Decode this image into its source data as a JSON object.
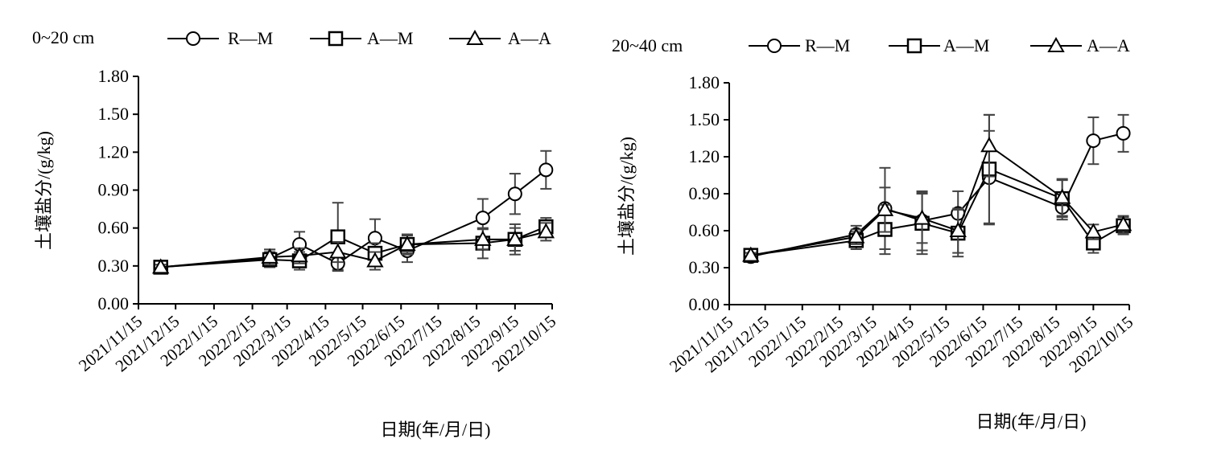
{
  "chart_data": [
    {
      "type": "line",
      "panel_label": "0~20 cm",
      "xlabel": "日期(年/月/日)",
      "ylabel": "土壤盐分/(g/kg)",
      "x_ticks": [
        "2021/11/15",
        "2021/12/15",
        "2022/1/15",
        "2022/2/15",
        "2022/3/15",
        "2022/4/15",
        "2022/5/15",
        "2022/6/15",
        "2022/7/15",
        "2022/8/15",
        "2022/9/15",
        "2022/10/15"
      ],
      "y_ticks": [
        "0.00",
        "0.30",
        "0.60",
        "0.90",
        "1.20",
        "1.50",
        "1.80"
      ],
      "ylim": [
        0,
        1.8
      ],
      "legend_position": "top",
      "series": [
        {
          "name": "R—M",
          "marker": "circle",
          "x": [
            "2021/12/3",
            "2022/3/1",
            "2022/3/25",
            "2022/4/25",
            "2022/5/25",
            "2022/6/20",
            "2022/8/20",
            "2022/9/15",
            "2022/10/10"
          ],
          "values": [
            0.29,
            0.36,
            0.47,
            0.32,
            0.52,
            0.42,
            0.68,
            0.87,
            1.06
          ],
          "errors": [
            0.02,
            0.07,
            0.1,
            0.05,
            0.15,
            0.09,
            0.15,
            0.16,
            0.15
          ]
        },
        {
          "name": "A—M",
          "marker": "square",
          "x": [
            "2021/12/3",
            "2022/3/1",
            "2022/3/25",
            "2022/4/25",
            "2022/5/25",
            "2022/6/20",
            "2022/8/20",
            "2022/9/15",
            "2022/10/10"
          ],
          "values": [
            0.29,
            0.35,
            0.34,
            0.53,
            0.4,
            0.47,
            0.48,
            0.51,
            0.61
          ],
          "errors": [
            0.02,
            0.06,
            0.07,
            0.27,
            0.08,
            0.07,
            0.12,
            0.12,
            0.07
          ]
        },
        {
          "name": "A—A",
          "marker": "triangle",
          "x": [
            "2021/12/3",
            "2022/3/1",
            "2022/3/25",
            "2022/4/25",
            "2022/5/25",
            "2022/6/20",
            "2022/8/20",
            "2022/9/15",
            "2022/10/10"
          ],
          "values": [
            0.29,
            0.37,
            0.38,
            0.41,
            0.34,
            0.47,
            0.51,
            0.51,
            0.57
          ],
          "errors": [
            0.02,
            0.06,
            0.06,
            0.08,
            0.07,
            0.08,
            0.08,
            0.09,
            0.07
          ]
        }
      ]
    },
    {
      "type": "line",
      "panel_label": "20~40 cm",
      "xlabel": "日期(年/月/日)",
      "ylabel": "土壤盐分/(g/kg)",
      "x_ticks": [
        "2021/11/15",
        "2021/12/15",
        "2022/1/15",
        "2022/2/15",
        "2022/3/15",
        "2022/4/15",
        "2022/5/15",
        "2022/6/15",
        "2022/7/15",
        "2022/8/15",
        "2022/9/15",
        "2022/10/15"
      ],
      "y_ticks": [
        "0.00",
        "0.30",
        "0.60",
        "0.90",
        "1.20",
        "1.50",
        "1.80"
      ],
      "ylim": [
        0,
        1.8
      ],
      "legend_position": "top",
      "series": [
        {
          "name": "R—M",
          "marker": "circle",
          "x": [
            "2021/12/3",
            "2022/3/1",
            "2022/3/25",
            "2022/4/25",
            "2022/5/25",
            "2022/6/20",
            "2022/8/20",
            "2022/9/15",
            "2022/10/10"
          ],
          "values": [
            0.39,
            0.57,
            0.78,
            0.68,
            0.74,
            1.03,
            0.79,
            1.33,
            1.39
          ],
          "errors": [
            0.02,
            0.07,
            0.33,
            0.24,
            0.18,
            0.38,
            0.1,
            0.19,
            0.15
          ]
        },
        {
          "name": "A—M",
          "marker": "square",
          "x": [
            "2021/12/3",
            "2022/3/1",
            "2022/3/25",
            "2022/4/25",
            "2022/5/25",
            "2022/6/20",
            "2022/8/20",
            "2022/9/15",
            "2022/10/10"
          ],
          "values": [
            0.4,
            0.52,
            0.61,
            0.66,
            0.58,
            1.1,
            0.86,
            0.5,
            0.64
          ],
          "errors": [
            0.02,
            0.07,
            0.2,
            0.25,
            0.19,
            0.44,
            0.15,
            0.08,
            0.07
          ]
        },
        {
          "name": "A—A",
          "marker": "triangle",
          "x": [
            "2021/12/3",
            "2022/3/1",
            "2022/3/25",
            "2022/4/25",
            "2022/5/25",
            "2022/6/20",
            "2022/8/20",
            "2022/9/15",
            "2022/10/10"
          ],
          "values": [
            0.4,
            0.55,
            0.77,
            0.7,
            0.6,
            1.29,
            0.87,
            0.59,
            0.65
          ],
          "errors": [
            0.02,
            0.06,
            0.18,
            0.2,
            0.18,
            0.25,
            0.15,
            0.06,
            0.07
          ]
        }
      ]
    }
  ]
}
